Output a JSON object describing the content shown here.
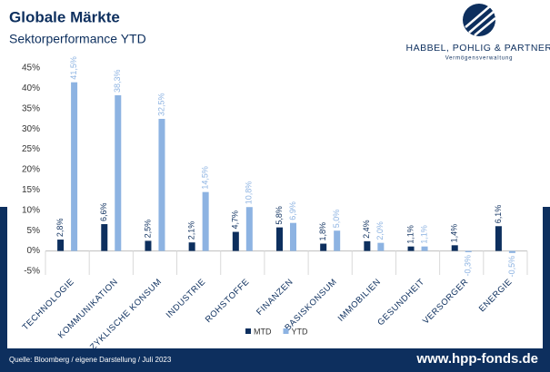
{
  "chart_data": {
    "type": "bar",
    "title": "Globale Märkte",
    "subtitle": "Sektorperformance YTD",
    "brand": "HABBEL, POHLIG & PARTNER",
    "brand_sub": "Vermögensverwaltung",
    "source": "Quelle: Bloomberg / eigene Darstellung / Juli 2023",
    "website": "www.hpp-fonds.de",
    "categories": [
      "TECHNOLOGIE",
      "KOMMUNIKATION",
      "ZYKLISCHE KONSUM",
      "INDUSTRIE",
      "ROHSTOFFE",
      "FINANZEN",
      "BASISKONSUM",
      "IMMOBILIEN",
      "GESUNDHEIT",
      "VERSORGER",
      "ENERGIE"
    ],
    "series": [
      {
        "name": "MTD",
        "color": "#0d2f5e",
        "values": [
          2.8,
          6.6,
          2.5,
          2.1,
          4.7,
          5.8,
          1.8,
          2.4,
          1.1,
          1.4,
          6.1
        ],
        "value_labels": [
          "2,8%",
          "6,6%",
          "2,5%",
          "2,1%",
          "4,7%",
          "5,8%",
          "1,8%",
          "2,4%",
          "1,1%",
          "1,4%",
          "6,1%"
        ]
      },
      {
        "name": "YTD",
        "color": "#8db3e2",
        "values": [
          41.5,
          38.3,
          32.5,
          14.5,
          10.8,
          6.9,
          5.0,
          2.0,
          1.1,
          -0.3,
          -0.5
        ],
        "value_labels": [
          "41,5%",
          "38,3%",
          "32,5%",
          "14,5%",
          "10,8%",
          "6,9%",
          "5,0%",
          "2,0%",
          "1,1%",
          "-0,3%",
          "-0,5%"
        ]
      }
    ],
    "ylim": [
      -5,
      45
    ],
    "yticks": [
      {
        "value": -5,
        "label": "-5%"
      },
      {
        "value": 0,
        "label": "0%"
      },
      {
        "value": 5,
        "label": "5%"
      },
      {
        "value": 10,
        "label": "10%"
      },
      {
        "value": 15,
        "label": "15%"
      },
      {
        "value": 20,
        "label": "20%"
      },
      {
        "value": 25,
        "label": "25%"
      },
      {
        "value": 30,
        "label": "30%"
      },
      {
        "value": 35,
        "label": "35%"
      },
      {
        "value": 40,
        "label": "40%"
      },
      {
        "value": 45,
        "label": "45%"
      }
    ],
    "grid": false,
    "legend": "bottom"
  }
}
